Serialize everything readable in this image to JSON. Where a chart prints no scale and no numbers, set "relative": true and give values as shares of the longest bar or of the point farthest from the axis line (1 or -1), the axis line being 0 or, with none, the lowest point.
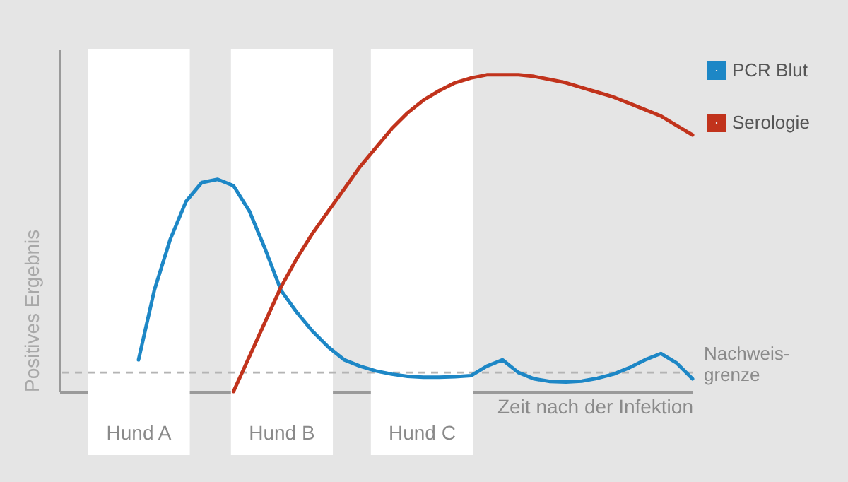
{
  "chart_data": {
    "type": "line",
    "relative": true,
    "ylabel": "Positives Ergebnis",
    "xlabel": "Zeit nach der Infektion",
    "ylim": [
      0,
      1.08
    ],
    "tick_labels": false,
    "grid": false,
    "legend": "top right",
    "line_style": "solid",
    "categories": [
      null,
      null,
      null,
      null,
      null,
      null,
      null,
      null,
      null,
      null,
      null,
      null,
      null,
      null,
      null,
      null,
      null,
      null,
      null,
      null,
      null,
      null,
      null,
      null,
      null,
      null,
      null,
      null,
      null,
      null,
      null,
      null,
      null,
      null,
      null,
      null,
      null,
      null,
      null,
      null,
      null
    ],
    "series": [
      {
        "name": "PCR Blut",
        "color": "#1d87c6",
        "values": [
          null,
          null,
          null,
          null,
          null,
          0.1,
          0.32,
          0.48,
          0.6,
          0.66,
          0.67,
          0.65,
          0.57,
          0.45,
          0.32,
          0.25,
          0.19,
          0.14,
          0.1,
          0.08,
          0.065,
          0.055,
          0.048,
          0.045,
          0.045,
          0.047,
          0.05,
          0.08,
          0.1,
          0.06,
          0.04,
          0.032,
          0.03,
          0.033,
          0.042,
          0.055,
          0.075,
          0.1,
          0.12,
          0.09,
          0.04
        ]
      },
      {
        "name": "Serologie",
        "color": "#c1331c",
        "values": [
          null,
          null,
          null,
          null,
          null,
          null,
          null,
          null,
          null,
          null,
          null,
          0,
          0.11,
          0.22,
          0.33,
          0.42,
          0.5,
          0.57,
          0.64,
          0.71,
          0.77,
          0.83,
          0.88,
          0.92,
          0.95,
          0.975,
          0.99,
          1.0,
          1.0,
          1.0,
          0.995,
          0.985,
          0.975,
          0.96,
          0.945,
          0.93,
          0.91,
          0.89,
          0.87,
          0.84,
          0.81
        ]
      }
    ],
    "ref_lines": [
      {
        "axis": "y",
        "value": 0.06,
        "label": "Nachweis-\ngrenze",
        "color": "#b4b4b4",
        "line_style": "dashed"
      }
    ],
    "annotations": [
      "Hund A",
      "Hund B",
      "Hund C"
    ]
  }
}
